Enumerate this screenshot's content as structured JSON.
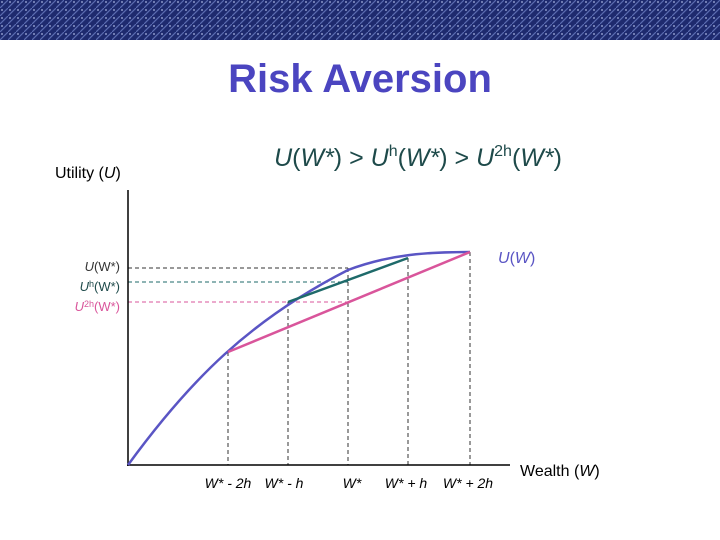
{
  "header": {
    "title": "Risk Aversion"
  },
  "inequality": {
    "parts": [
      "U",
      "(",
      "W*",
      ") > ",
      "U",
      "h",
      "(",
      "W*",
      ") > ",
      "U",
      "2h",
      "(",
      "W*",
      ")"
    ]
  },
  "axes": {
    "y_label": [
      "Utility (",
      "U",
      ")"
    ],
    "x_label": [
      "Wealth (",
      "W",
      ")"
    ]
  },
  "curve_label": [
    "U",
    "(",
    "W",
    ")"
  ],
  "levels": [
    [
      "U",
      "(W*)"
    ],
    [
      "U",
      "h",
      "(W*)"
    ],
    [
      "U",
      "2h",
      "(W*)"
    ]
  ],
  "x_points": [
    "W* - 2h",
    "W* - h",
    "W*",
    "W* + h",
    "W* + 2h"
  ]
}
